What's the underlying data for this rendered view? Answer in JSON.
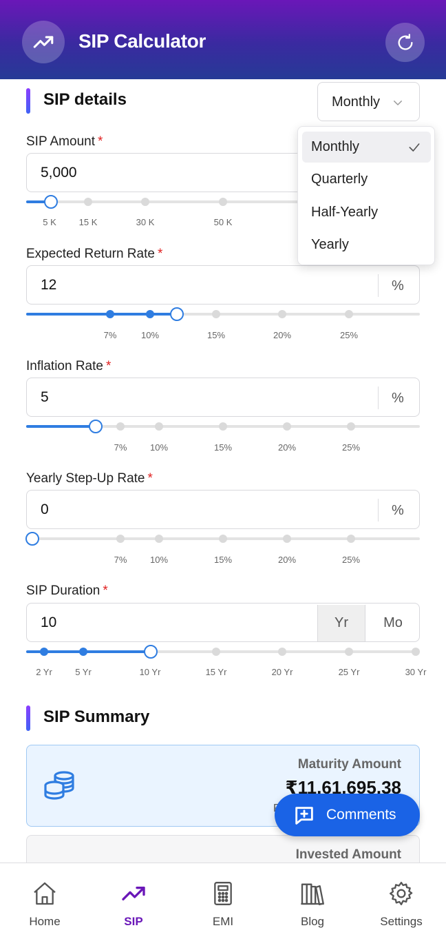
{
  "header": {
    "title": "SIP Calculator"
  },
  "sip_details": {
    "title": "SIP details",
    "frequency": {
      "selected": "Monthly",
      "options": [
        "Monthly",
        "Quarterly",
        "Half-Yearly",
        "Yearly"
      ]
    },
    "required_mark": "*",
    "amount": {
      "label": "SIP Amount",
      "value": "5,000",
      "marks": [
        "5 K",
        "15 K",
        "30 K",
        "50 K"
      ]
    },
    "return_rate": {
      "label": "Expected Return Rate",
      "value": "12",
      "unit": "%",
      "marks": [
        "7%",
        "10%",
        "15%",
        "20%",
        "25%"
      ]
    },
    "inflation": {
      "label": "Inflation Rate",
      "value": "5",
      "unit": "%",
      "marks": [
        "7%",
        "10%",
        "15%",
        "20%",
        "25%"
      ]
    },
    "step_up": {
      "label": "Yearly Step-Up Rate",
      "value": "0",
      "unit": "%",
      "marks": [
        "7%",
        "10%",
        "15%",
        "20%",
        "25%"
      ]
    },
    "duration": {
      "label": "SIP Duration",
      "value": "10",
      "unit_year": "Yr",
      "unit_month": "Mo",
      "marks": [
        "2 Yr",
        "5 Yr",
        "10 Yr",
        "15 Yr",
        "20 Yr",
        "25 Yr",
        "30 Yr"
      ]
    }
  },
  "summary": {
    "title": "SIP Summary",
    "maturity": {
      "label": "Maturity Amount",
      "value": "₹11,61,695.38",
      "sub": "R"
    },
    "invested": {
      "label": "Invested Amount"
    }
  },
  "fab": {
    "label": "Comments"
  },
  "nav": {
    "items": [
      {
        "label": "Home",
        "icon": "home-icon"
      },
      {
        "label": "SIP",
        "icon": "trending-up-icon"
      },
      {
        "label": "EMI",
        "icon": "calculator-icon"
      },
      {
        "label": "Blog",
        "icon": "books-icon"
      },
      {
        "label": "Settings",
        "icon": "gear-icon"
      }
    ]
  },
  "colors": {
    "accent": "#2f7de1",
    "brand": "#6a17b8",
    "fab": "#1a63e6",
    "required": "#e02020"
  }
}
